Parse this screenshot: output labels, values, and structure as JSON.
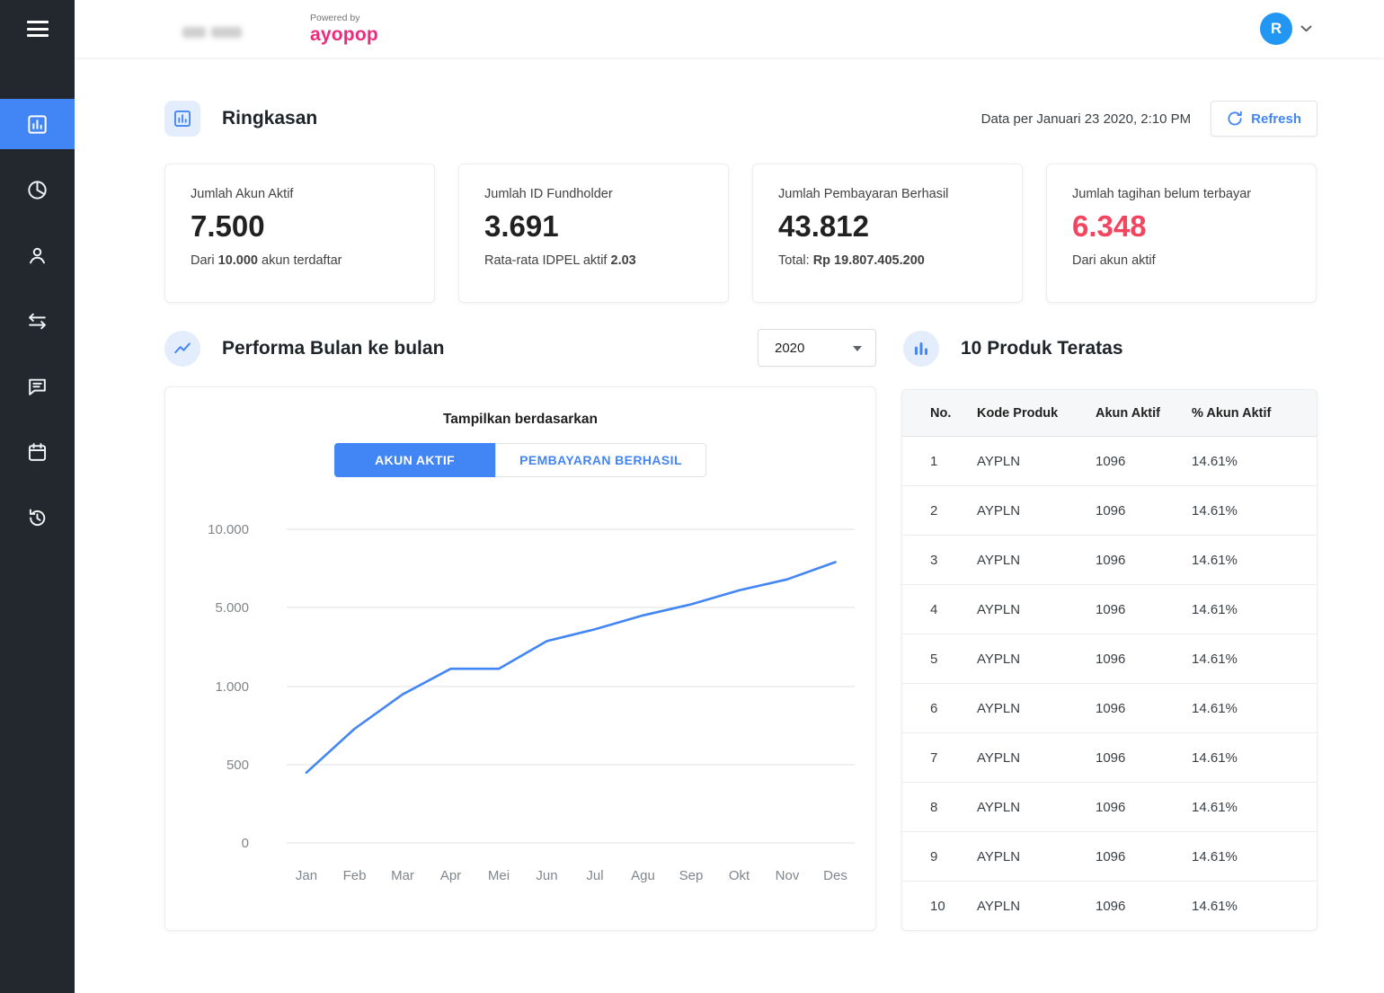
{
  "colors": {
    "accent_blue": "#4285f4",
    "brand_pink": "#ee2a7b",
    "alert_red": "#f4455f",
    "sidebar_bg": "#23282f"
  },
  "header": {
    "powered_by": "Powered by",
    "brand": "ayopop",
    "avatar_letter": "R"
  },
  "sidebar": {
    "items": [
      {
        "name": "dashboard",
        "icon": "chart-square",
        "active": true
      },
      {
        "name": "pie-report",
        "icon": "pie-chart",
        "active": false
      },
      {
        "name": "users",
        "icon": "person",
        "active": false
      },
      {
        "name": "transactions",
        "icon": "swap-arrows",
        "active": false
      },
      {
        "name": "messages",
        "icon": "chat",
        "active": false
      },
      {
        "name": "calendar",
        "icon": "calendar",
        "active": false
      },
      {
        "name": "history",
        "icon": "history",
        "active": false
      }
    ]
  },
  "summary": {
    "title": "Ringkasan",
    "data_per": "Data per Januari 23 2020, 2:10 PM",
    "refresh_label": "Refresh",
    "cards": [
      {
        "label": "Jumlah Akun Aktif",
        "value": "7.500",
        "sub_prefix": "Dari ",
        "sub_bold": "10.000",
        "sub_suffix": " akun terdaftar"
      },
      {
        "label": "Jumlah ID Fundholder",
        "value": "3.691",
        "sub_prefix": "Rata-rata IDPEL aktif ",
        "sub_bold": "2.03",
        "sub_suffix": ""
      },
      {
        "label": "Jumlah Pembayaran Berhasil",
        "value": "43.812",
        "sub_prefix": "Total: ",
        "sub_bold": "Rp 19.807.405.200",
        "sub_suffix": ""
      },
      {
        "label": "Jumlah tagihan belum terbayar",
        "value": "6.348",
        "sub_prefix": "Dari akun aktif",
        "sub_bold": "",
        "sub_suffix": ""
      }
    ]
  },
  "performance": {
    "title": "Performa Bulan ke bulan",
    "year": "2020",
    "toggles": [
      {
        "label": "AKUN AKTIF",
        "active": true
      },
      {
        "label": "PEMBAYARAN BERHASIL",
        "active": false
      }
    ]
  },
  "top_products": {
    "title": "10 Produk Teratas",
    "columns": [
      "No.",
      "Kode Produk",
      "Akun Aktif",
      "% Akun Aktif"
    ],
    "rows": [
      [
        "1",
        "AYPLN",
        "1096",
        "14.61%"
      ],
      [
        "2",
        "AYPLN",
        "1096",
        "14.61%"
      ],
      [
        "3",
        "AYPLN",
        "1096",
        "14.61%"
      ],
      [
        "4",
        "AYPLN",
        "1096",
        "14.61%"
      ],
      [
        "5",
        "AYPLN",
        "1096",
        "14.61%"
      ],
      [
        "6",
        "AYPLN",
        "1096",
        "14.61%"
      ],
      [
        "7",
        "AYPLN",
        "1096",
        "14.61%"
      ],
      [
        "8",
        "AYPLN",
        "1096",
        "14.61%"
      ],
      [
        "9",
        "AYPLN",
        "1096",
        "14.61%"
      ],
      [
        "10",
        "AYPLN",
        "1096",
        "14.61%"
      ]
    ]
  },
  "chart_data": {
    "type": "line",
    "title": "Tampilkan berdasarkan",
    "series_shown": "AKUN AKTIF",
    "x": [
      "Jan",
      "Feb",
      "Mar",
      "Apr",
      "Mei",
      "Jun",
      "Jul",
      "Agu",
      "Sep",
      "Okt",
      "Nov",
      "Des"
    ],
    "values": [
      450,
      730,
      950,
      1900,
      1900,
      3300,
      3900,
      4600,
      5200,
      6100,
      6800,
      7900
    ],
    "yticks": [
      0,
      500,
      1000,
      5000,
      10000
    ],
    "ytick_labels": [
      "0",
      "500",
      "1.000",
      "5.000",
      "10.000"
    ],
    "axis_note": "gridlines evenly spaced, value scale non-linear between ticks",
    "line_color": "#4285f4",
    "grid": true,
    "legend": "none"
  }
}
